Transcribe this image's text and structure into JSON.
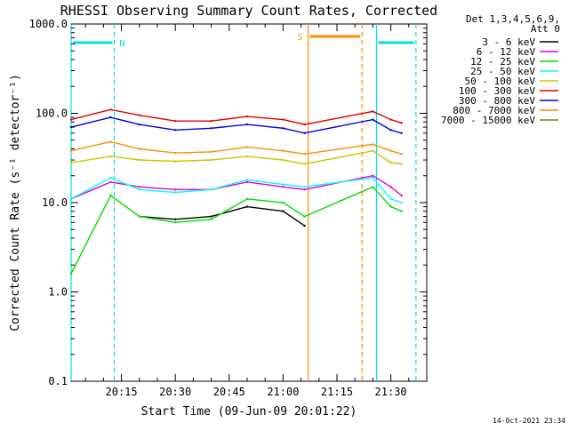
{
  "chart_data": {
    "type": "line",
    "title": "RHESSI Observing Summary Count Rates, Corrected",
    "ylabel": "Corrected Count Rate (s⁻¹ detector⁻¹)",
    "xlabel": "Start Time (09-Jun-09 20:01:22)",
    "footer": "14-Oct-2021 23:34",
    "y_scale": "log",
    "ylim": [
      0.1,
      1000
    ],
    "y_ticks": [
      {
        "value": 0.1,
        "label": "0.1"
      },
      {
        "value": 1,
        "label": "1.0"
      },
      {
        "value": 10,
        "label": "10.0"
      },
      {
        "value": 100,
        "label": "100.0"
      },
      {
        "value": 1000,
        "label": "1000.0"
      }
    ],
    "xlim": [
      "20:01",
      "21:40"
    ],
    "x_ticks": [
      "20:15",
      "20:30",
      "20:45",
      "21:00",
      "21:15",
      "21:30"
    ],
    "legend_header": [
      "Det 1,3,4,5,6,9,",
      "Att 0"
    ],
    "legend_position": "right",
    "grid": false,
    "data_gap": [
      "21:07",
      "21:25"
    ],
    "series": [
      {
        "name": "3 - 6 keV",
        "color": "#000000",
        "x": [
          "20:01",
          "20:12",
          "20:20",
          "20:30",
          "20:40",
          "20:50",
          "21:00",
          "21:06",
          "21:25",
          "21:30",
          "21:33"
        ],
        "y": [
          null,
          null,
          7,
          6.5,
          7,
          9,
          8,
          5.5,
          null,
          null,
          null
        ]
      },
      {
        "name": "6 - 12 keV",
        "color": "#e000e0",
        "x": [
          "20:01",
          "20:12",
          "20:20",
          "20:30",
          "20:40",
          "20:50",
          "21:00",
          "21:06",
          "21:25",
          "21:30",
          "21:33"
        ],
        "y": [
          11,
          17,
          15,
          14,
          14,
          17,
          15,
          14,
          20,
          15,
          12
        ]
      },
      {
        "name": "12 - 25 keV",
        "color": "#00e000",
        "x": [
          "20:01",
          "20:12",
          "20:20",
          "20:30",
          "20:40",
          "20:50",
          "21:00",
          "21:06",
          "21:25",
          "21:30",
          "21:33"
        ],
        "y": [
          1.6,
          12,
          7,
          6,
          6.5,
          11,
          10,
          7,
          15,
          9,
          8
        ]
      },
      {
        "name": "25 - 50 keV",
        "color": "#00ffff",
        "x": [
          "20:01",
          "20:12",
          "20:20",
          "20:30",
          "20:40",
          "20:50",
          "21:00",
          "21:06",
          "21:25",
          "21:30",
          "21:33"
        ],
        "y": [
          11,
          19,
          14,
          13,
          14,
          18,
          16,
          15,
          19,
          11,
          10
        ]
      },
      {
        "name": "50 - 100 keV",
        "color": "#c8c800",
        "x": [
          "20:01",
          "20:12",
          "20:20",
          "20:30",
          "20:40",
          "20:50",
          "21:00",
          "21:06",
          "21:25",
          "21:30",
          "21:33"
        ],
        "y": [
          28,
          33,
          30,
          29,
          30,
          33,
          30,
          27,
          38,
          28,
          27
        ]
      },
      {
        "name": "100 - 300 keV",
        "color": "#e00000",
        "x": [
          "20:01",
          "20:12",
          "20:20",
          "20:30",
          "20:40",
          "20:50",
          "21:00",
          "21:06",
          "21:25",
          "21:30",
          "21:33"
        ],
        "y": [
          85,
          110,
          95,
          82,
          82,
          92,
          85,
          75,
          105,
          85,
          78
        ]
      },
      {
        "name": "300 - 800 keV",
        "color": "#0000e0",
        "x": [
          "20:01",
          "20:12",
          "20:20",
          "20:30",
          "20:40",
          "20:50",
          "21:00",
          "21:06",
          "21:25",
          "21:30",
          "21:33"
        ],
        "y": [
          70,
          90,
          75,
          65,
          68,
          75,
          68,
          60,
          85,
          65,
          60
        ]
      },
      {
        "name": "800 - 7000 keV",
        "color": "#ff8c00",
        "x": [
          "20:01",
          "20:12",
          "20:20",
          "20:30",
          "20:40",
          "20:50",
          "21:00",
          "21:06",
          "21:25",
          "21:30",
          "21:33"
        ],
        "y": [
          38,
          48,
          40,
          36,
          37,
          42,
          38,
          35,
          45,
          38,
          35
        ]
      },
      {
        "name": "7000 - 15000 keV",
        "color": "#808000",
        "x": [
          "20:01",
          "20:12",
          "20:20",
          "20:30",
          "20:40",
          "20:50",
          "21:00",
          "21:06",
          "21:25",
          "21:30",
          "21:33"
        ],
        "y": [
          null,
          null,
          null,
          null,
          null,
          null,
          null,
          null,
          null,
          null,
          null
        ]
      }
    ],
    "annotations": [
      {
        "label": "N",
        "color": "#00e0e0",
        "x_start": "20:01",
        "x_end": "20:13"
      },
      {
        "label": "S",
        "color": "#ff8c00",
        "x_start": "21:07",
        "x_end": "21:22"
      },
      {
        "label": "",
        "color": "#00e0e0",
        "x_start": "21:26",
        "x_end": "21:37"
      }
    ]
  }
}
